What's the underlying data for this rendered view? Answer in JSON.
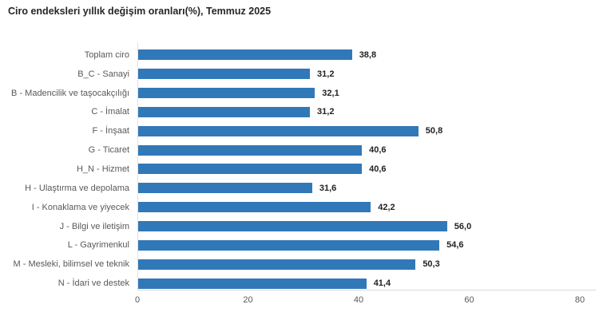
{
  "title": "Ciro endeksleri yıllık değişim oranları(%), Temmuz 2025",
  "chart_data": {
    "type": "bar",
    "orientation": "horizontal",
    "title": "Ciro endeksleri yıllık değişim oranları(%), Temmuz 2025",
    "categories": [
      "Toplam ciro",
      "B_C - Sanayi",
      "B - Madencilik ve taşocakçılığı",
      "C - İmalat",
      "F - İnşaat",
      "G - Ticaret",
      "H_N - Hizmet",
      "H - Ulaştırma ve depolama",
      "I - Konaklama ve yiyecek",
      "J - Bilgi ve iletişim",
      "L - Gayrimenkul",
      "M - Mesleki, bilimsel ve teknik",
      "N - İdari ve destek"
    ],
    "values": [
      38.8,
      31.2,
      32.1,
      31.2,
      50.8,
      40.6,
      40.6,
      31.6,
      42.2,
      56.0,
      54.6,
      50.3,
      41.4
    ],
    "values_display": [
      "38,8",
      "31,2",
      "32,1",
      "31,2",
      "50,8",
      "40,6",
      "40,6",
      "31,6",
      "42,2",
      "56,0",
      "54,6",
      "50,3",
      "41,4"
    ],
    "x_ticks": [
      "0",
      "20",
      "40",
      "60",
      "80"
    ],
    "xlim": [
      0,
      80
    ],
    "xlabel": "",
    "ylabel": "",
    "legend_position": "none",
    "grid": "off",
    "bar_color": "#3178B8",
    "value_label_color": "#222222",
    "category_label_color": "#595959",
    "axis_line_color": "#d9d9d9"
  }
}
